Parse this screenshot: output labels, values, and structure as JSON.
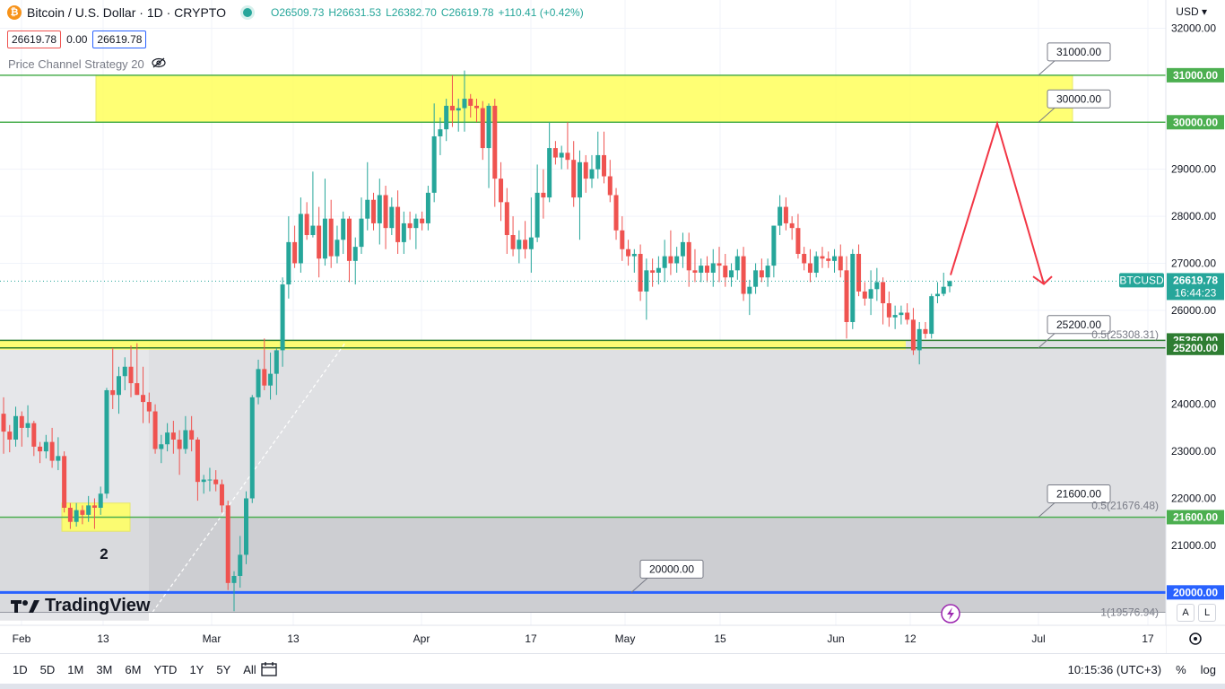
{
  "header": {
    "symbol": "Bitcoin / U.S. Dollar · 1D · CRYPTO",
    "open": "O26509.73",
    "high": "H26631.53",
    "low": "L26382.70",
    "close": "C26619.78",
    "change": "+110.41 (+0.42%)",
    "sell_price": "26619.78",
    "spread": "0.00",
    "buy_price": "26619.78",
    "strategy": "Price Channel Strategy 20",
    "currency": "USD"
  },
  "colors": {
    "up": "#26a69a",
    "down": "#ef5350",
    "zone": "#ffff66",
    "hline": "#4caf50",
    "blueline": "#2962ff",
    "arrow": "#f23645"
  },
  "chart_data": {
    "type": "candlestick",
    "symbol": "BTCUSD",
    "interval": "1D",
    "x_ticks": [
      "Feb",
      "13",
      "Mar",
      "13",
      "Apr",
      "17",
      "May",
      "15",
      "Jun",
      "12",
      "Jul",
      "17"
    ],
    "y_ticks": [
      21000,
      22000,
      23000,
      24000,
      26000,
      27000,
      28000,
      29000,
      32000
    ],
    "ylim": [
      19300,
      32600
    ],
    "last_price": {
      "label": "BTCUSD",
      "value": "26619.78",
      "countdown": "16:44:23",
      "y": 26619.78
    },
    "hlines": [
      {
        "label": "31000.00",
        "y": 31000
      },
      {
        "label": "30000.00",
        "y": 30000
      },
      {
        "label": "25360.00",
        "y": 25360
      },
      {
        "label": "25200.00",
        "y": 25200
      },
      {
        "label": "21600.00",
        "y": 21600
      },
      {
        "label": "20000.00",
        "y": 20000
      }
    ],
    "callouts": [
      {
        "text": "31000.00",
        "y": 31000
      },
      {
        "text": "30000.00",
        "y": 30000
      },
      {
        "text": "25200.00",
        "y": 25200
      },
      {
        "text": "21600.00",
        "y": 21600
      },
      {
        "text": "20000.00",
        "y": 20000
      }
    ],
    "fib_labels": [
      {
        "text": "0.5(25308.31)",
        "y": 25308.31
      },
      {
        "text": "0.5(21676.48)",
        "y": 21676.48
      },
      {
        "text": "1(19576.94)",
        "y": 19576.94
      }
    ],
    "annotation": "2",
    "candles": [
      [
        23800,
        24150,
        22950,
        23420
      ],
      [
        23420,
        23560,
        22980,
        23250
      ],
      [
        23250,
        23950,
        23100,
        23750
      ],
      [
        23750,
        23850,
        23100,
        23500
      ],
      [
        23500,
        23980,
        23300,
        23600
      ],
      [
        23600,
        23650,
        22900,
        23100
      ],
      [
        23100,
        23200,
        22750,
        23000
      ],
      [
        23000,
        23350,
        22850,
        23200
      ],
      [
        23200,
        23500,
        22650,
        22800
      ],
      [
        22800,
        23300,
        22600,
        22900
      ],
      [
        22900,
        23000,
        21700,
        21800
      ],
      [
        21800,
        21900,
        21350,
        21500
      ],
      [
        21500,
        21900,
        21400,
        21750
      ],
      [
        21750,
        21850,
        21450,
        21650
      ],
      [
        21650,
        22050,
        21500,
        21850
      ],
      [
        21850,
        22000,
        21350,
        21800
      ],
      [
        21800,
        22250,
        21650,
        22100
      ],
      [
        22100,
        24350,
        22000,
        24300
      ],
      [
        24300,
        25200,
        23900,
        24200
      ],
      [
        24200,
        24800,
        23800,
        24600
      ],
      [
        24600,
        25000,
        24300,
        24800
      ],
      [
        24800,
        25250,
        24150,
        24450
      ],
      [
        24450,
        25300,
        24200,
        24200
      ],
      [
        24200,
        24800,
        23600,
        24050
      ],
      [
        24050,
        24250,
        23600,
        23850
      ],
      [
        23850,
        24000,
        22950,
        23050
      ],
      [
        23050,
        23350,
        22750,
        23150
      ],
      [
        23150,
        23600,
        23000,
        23400
      ],
      [
        23400,
        23650,
        22950,
        23250
      ],
      [
        23250,
        23450,
        22500,
        23050
      ],
      [
        23050,
        23750,
        22950,
        23450
      ],
      [
        23450,
        23750,
        23000,
        23250
      ],
      [
        23250,
        23300,
        21950,
        22350
      ],
      [
        22350,
        22500,
        22100,
        22400
      ],
      [
        22400,
        22650,
        22150,
        22400
      ],
      [
        22400,
        22600,
        22150,
        22300
      ],
      [
        22300,
        22400,
        21700,
        21850
      ],
      [
        21850,
        21950,
        20050,
        20200
      ],
      [
        20200,
        20450,
        19600,
        20350
      ],
      [
        20350,
        21200,
        20100,
        20800
      ],
      [
        20800,
        22150,
        20600,
        22000
      ],
      [
        22000,
        24200,
        21900,
        24150
      ],
      [
        24150,
        24950,
        24000,
        24750
      ],
      [
        24750,
        25400,
        24300,
        24400
      ],
      [
        24400,
        25100,
        24100,
        24650
      ],
      [
        24650,
        25200,
        24200,
        25150
      ],
      [
        25150,
        26700,
        24800,
        26550
      ],
      [
        26550,
        28000,
        26250,
        27450
      ],
      [
        27450,
        27800,
        26900,
        27000
      ],
      [
        27000,
        28400,
        26800,
        28050
      ],
      [
        28050,
        28300,
        27500,
        27600
      ],
      [
        27600,
        28950,
        27550,
        27800
      ],
      [
        27800,
        28200,
        26700,
        27100
      ],
      [
        27100,
        28800,
        26950,
        27950
      ],
      [
        27950,
        28350,
        26900,
        27150
      ],
      [
        27150,
        27800,
        27000,
        27500
      ],
      [
        27500,
        28100,
        27200,
        27950
      ],
      [
        27950,
        28000,
        26600,
        27050
      ],
      [
        27050,
        27550,
        26550,
        27350
      ],
      [
        27350,
        28400,
        27200,
        27950
      ],
      [
        27950,
        29150,
        27700,
        28350
      ],
      [
        28350,
        28500,
        27700,
        27850
      ],
      [
        27850,
        28800,
        27400,
        28450
      ],
      [
        28450,
        28650,
        27300,
        27750
      ],
      [
        27750,
        28400,
        27600,
        28200
      ],
      [
        28200,
        28550,
        27200,
        27450
      ],
      [
        27450,
        28100,
        27200,
        27850
      ],
      [
        27850,
        28100,
        27500,
        27750
      ],
      [
        27750,
        28050,
        27300,
        27950
      ],
      [
        27950,
        28100,
        27700,
        27850
      ],
      [
        27850,
        28650,
        27700,
        28500
      ],
      [
        28500,
        30400,
        28300,
        29700
      ],
      [
        29700,
        30100,
        29300,
        29850
      ],
      [
        29850,
        30500,
        29600,
        30350
      ],
      [
        30350,
        31000,
        29900,
        30250
      ],
      [
        30250,
        30500,
        29800,
        30300
      ],
      [
        30300,
        31100,
        29800,
        30500
      ],
      [
        30500,
        30600,
        30100,
        30350
      ],
      [
        30350,
        30500,
        30000,
        30300
      ],
      [
        30300,
        30450,
        29200,
        29450
      ],
      [
        29450,
        30400,
        28600,
        30350
      ],
      [
        30350,
        30500,
        28200,
        28800
      ],
      [
        28800,
        29150,
        27900,
        28300
      ],
      [
        28300,
        28600,
        27200,
        27600
      ],
      [
        27600,
        28000,
        27150,
        27300
      ],
      [
        27300,
        27700,
        27000,
        27500
      ],
      [
        27500,
        27900,
        27100,
        27300
      ],
      [
        27300,
        28400,
        26800,
        27550
      ],
      [
        27550,
        29100,
        27450,
        28500
      ],
      [
        28500,
        29000,
        27950,
        28400
      ],
      [
        28400,
        30000,
        28300,
        29450
      ],
      [
        29450,
        29600,
        29100,
        29250
      ],
      [
        29250,
        29500,
        29000,
        29350
      ],
      [
        29350,
        30000,
        29000,
        29200
      ],
      [
        29200,
        29600,
        28200,
        28400
      ],
      [
        28400,
        29400,
        27500,
        29150
      ],
      [
        29150,
        29300,
        28500,
        28800
      ],
      [
        28800,
        29300,
        28600,
        29000
      ],
      [
        29000,
        29800,
        28800,
        29300
      ],
      [
        29300,
        29800,
        28700,
        28850
      ],
      [
        28850,
        29200,
        28300,
        28450
      ],
      [
        28450,
        28600,
        27500,
        27700
      ],
      [
        27700,
        28000,
        27050,
        27300
      ],
      [
        27300,
        27500,
        26950,
        27150
      ],
      [
        27150,
        27300,
        26800,
        27200
      ],
      [
        27200,
        27400,
        26200,
        26400
      ],
      [
        26400,
        27100,
        25800,
        26850
      ],
      [
        26850,
        27100,
        26500,
        26800
      ],
      [
        26800,
        27150,
        26550,
        26900
      ],
      [
        26900,
        27500,
        26600,
        27150
      ],
      [
        27150,
        27700,
        26750,
        27000
      ],
      [
        27000,
        27350,
        26800,
        27150
      ],
      [
        27150,
        27650,
        26900,
        27450
      ],
      [
        27450,
        27650,
        26500,
        26850
      ],
      [
        26850,
        27300,
        26600,
        26800
      ],
      [
        26800,
        27100,
        26600,
        26950
      ],
      [
        26950,
        27150,
        26600,
        26800
      ],
      [
        26800,
        27300,
        26500,
        27000
      ],
      [
        27000,
        27350,
        26600,
        26950
      ],
      [
        26950,
        27200,
        26500,
        26700
      ],
      [
        26700,
        27000,
        26500,
        26850
      ],
      [
        26850,
        27300,
        26650,
        27150
      ],
      [
        27150,
        27350,
        26200,
        26350
      ],
      [
        26350,
        26650,
        25900,
        26500
      ],
      [
        26500,
        27000,
        26350,
        26850
      ],
      [
        26850,
        27100,
        26600,
        26700
      ],
      [
        26700,
        27100,
        26500,
        26950
      ],
      [
        26950,
        27800,
        26700,
        27800
      ],
      [
        27800,
        28450,
        27600,
        28200
      ],
      [
        28200,
        28400,
        27700,
        27850
      ],
      [
        27850,
        28000,
        27500,
        27750
      ],
      [
        27750,
        28050,
        27100,
        27200
      ],
      [
        27200,
        27350,
        26850,
        27000
      ],
      [
        27000,
        27300,
        26600,
        26800
      ],
      [
        26800,
        27250,
        26700,
        27150
      ],
      [
        27150,
        27350,
        26900,
        27100
      ],
      [
        27100,
        27250,
        26900,
        27050
      ],
      [
        27050,
        27300,
        26800,
        27150
      ],
      [
        27150,
        27400,
        26700,
        26850
      ],
      [
        26850,
        27150,
        25400,
        25750
      ],
      [
        25750,
        27300,
        25600,
        27200
      ],
      [
        27200,
        27400,
        26300,
        26400
      ],
      [
        26400,
        26600,
        26100,
        26250
      ],
      [
        26250,
        26850,
        25900,
        26450
      ],
      [
        26450,
        26900,
        26200,
        26600
      ],
      [
        26600,
        26700,
        25700,
        26150
      ],
      [
        26150,
        26400,
        25650,
        25850
      ],
      [
        25850,
        26100,
        25600,
        25900
      ],
      [
        25900,
        26100,
        25700,
        25950
      ],
      [
        25950,
        26150,
        25700,
        25800
      ],
      [
        25800,
        26050,
        25050,
        25150
      ],
      [
        25150,
        25750,
        24850,
        25600
      ],
      [
        25600,
        25750,
        25400,
        25500
      ],
      [
        25500,
        26350,
        25400,
        26300
      ],
      [
        26300,
        26600,
        26150,
        26350
      ],
      [
        26350,
        26800,
        26300,
        26500
      ],
      [
        26509.73,
        26631.53,
        26382.7,
        26619.78
      ]
    ]
  },
  "tradingview_logo": "TradingView",
  "bottom": {
    "ranges": [
      "1D",
      "5D",
      "1M",
      "3M",
      "6M",
      "YTD",
      "1Y",
      "5Y",
      "All"
    ],
    "time": "10:15:36 (UTC+3)",
    "percent": "%",
    "log": "log",
    "auto": "A",
    "log_letter": "L"
  }
}
